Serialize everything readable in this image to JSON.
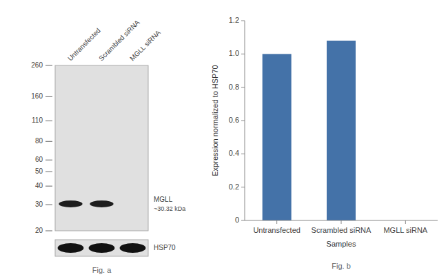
{
  "chart_data": [
    {
      "type": "blot",
      "categories": [
        "Untransfected",
        "Scrambled siRNA",
        "MGLL siRNA"
      ],
      "log": "y",
      "ylim": [
        20,
        260
      ],
      "yticks": [
        260,
        160,
        110,
        80,
        60,
        50,
        40,
        30,
        20
      ],
      "series": [
        {
          "name": "MGLL",
          "annotation": "~30.32 kDa",
          "values": [
            30.32,
            30.32,
            null
          ]
        }
      ],
      "loading_control": "HSP70",
      "caption": "Fig. a"
    },
    {
      "type": "bar",
      "categories": [
        "Untransfected",
        "Scrambled siRNA",
        "MGLL siRNA"
      ],
      "values": [
        1.0,
        1.08,
        0.0
      ],
      "color": "#4472a8",
      "ylim": [
        0,
        1.2
      ],
      "yticks": [
        0,
        0.2,
        0.4,
        0.6,
        {
          "value": 1,
          "label": "1.0"
        },
        0.8,
        1.2
      ],
      "ylabel": "Expression normalized to HSP70",
      "xlabel": "Samples",
      "grid": false,
      "caption": "Fig. b"
    }
  ]
}
